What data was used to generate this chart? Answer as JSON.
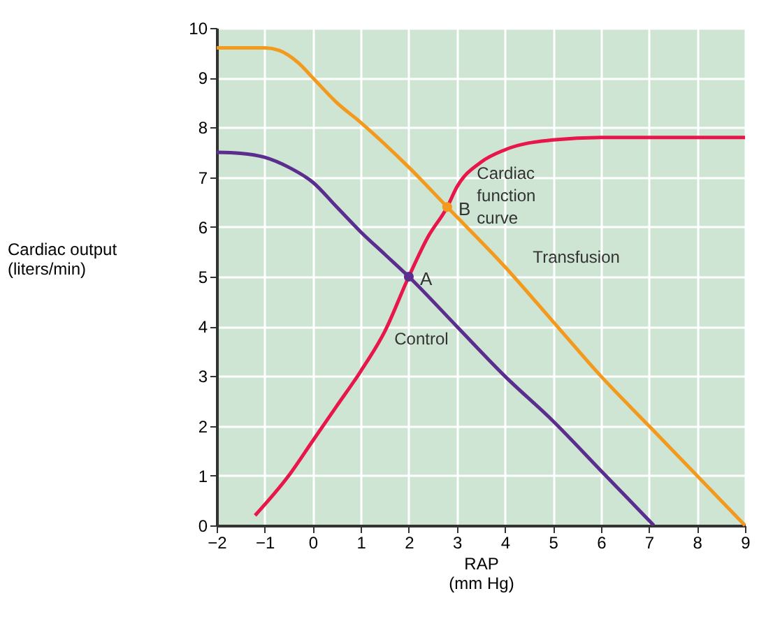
{
  "chart_data": {
    "type": "line",
    "xlabel": "RAP\n(mm Hg)",
    "ylabel": "Cardiac output\n(liters/min)",
    "xlim": [
      -2,
      9
    ],
    "xticks": [
      -2,
      -1,
      0,
      1,
      2,
      3,
      4,
      5,
      6,
      7,
      8,
      9
    ],
    "ylim": [
      0,
      10
    ],
    "yticks": [
      0,
      1,
      2,
      3,
      4,
      5,
      6,
      7,
      8,
      9,
      10
    ],
    "grid": true,
    "marker": "none",
    "line_style": "solid",
    "series": [
      {
        "name": "Control",
        "color": "#5b2d8e",
        "x": [
          -2,
          -1.5,
          -1,
          -0.5,
          0,
          0.5,
          1,
          1.5,
          2,
          3,
          4,
          5,
          6,
          7.1
        ],
        "values": [
          7.5,
          7.48,
          7.4,
          7.2,
          6.9,
          6.4,
          5.9,
          5.45,
          5.0,
          4.0,
          3.0,
          2.1,
          1.1,
          0
        ]
      },
      {
        "name": "Transfusion",
        "color": "#f39a1e",
        "x": [
          -2,
          -1,
          -0.7,
          -0.3,
          0,
          0.5,
          1,
          2,
          2.8,
          4,
          5,
          6,
          7,
          8,
          9
        ],
        "values": [
          9.6,
          9.6,
          9.55,
          9.3,
          9.0,
          8.5,
          8.1,
          7.2,
          6.4,
          5.2,
          4.1,
          3.0,
          2.0,
          1.0,
          0
        ]
      },
      {
        "name": "Cardiac function curve",
        "color": "#e8174b",
        "x": [
          -1.2,
          -0.5,
          0,
          0.5,
          1,
          1.5,
          2,
          2.4,
          2.8,
          3,
          3.5,
          4,
          5,
          6,
          7,
          9
        ],
        "values": [
          0.2,
          1.0,
          1.7,
          2.4,
          3.1,
          3.9,
          5.0,
          5.8,
          6.4,
          6.8,
          7.3,
          7.55,
          7.75,
          7.8,
          7.8,
          7.8
        ]
      },
      {
        "type": "scatter",
        "marker": "circle",
        "color": "#5b2d8e",
        "x": [
          2
        ],
        "values": [
          5.0
        ]
      },
      {
        "type": "scatter",
        "marker": "circle",
        "color": "#f39a1e",
        "x": [
          2.8
        ],
        "values": [
          6.4
        ]
      }
    ],
    "annotations": [
      {
        "text": "A",
        "x": 2,
        "y": 5.0
      },
      {
        "text": "B",
        "x": 2.8,
        "y": 6.4
      }
    ]
  }
}
